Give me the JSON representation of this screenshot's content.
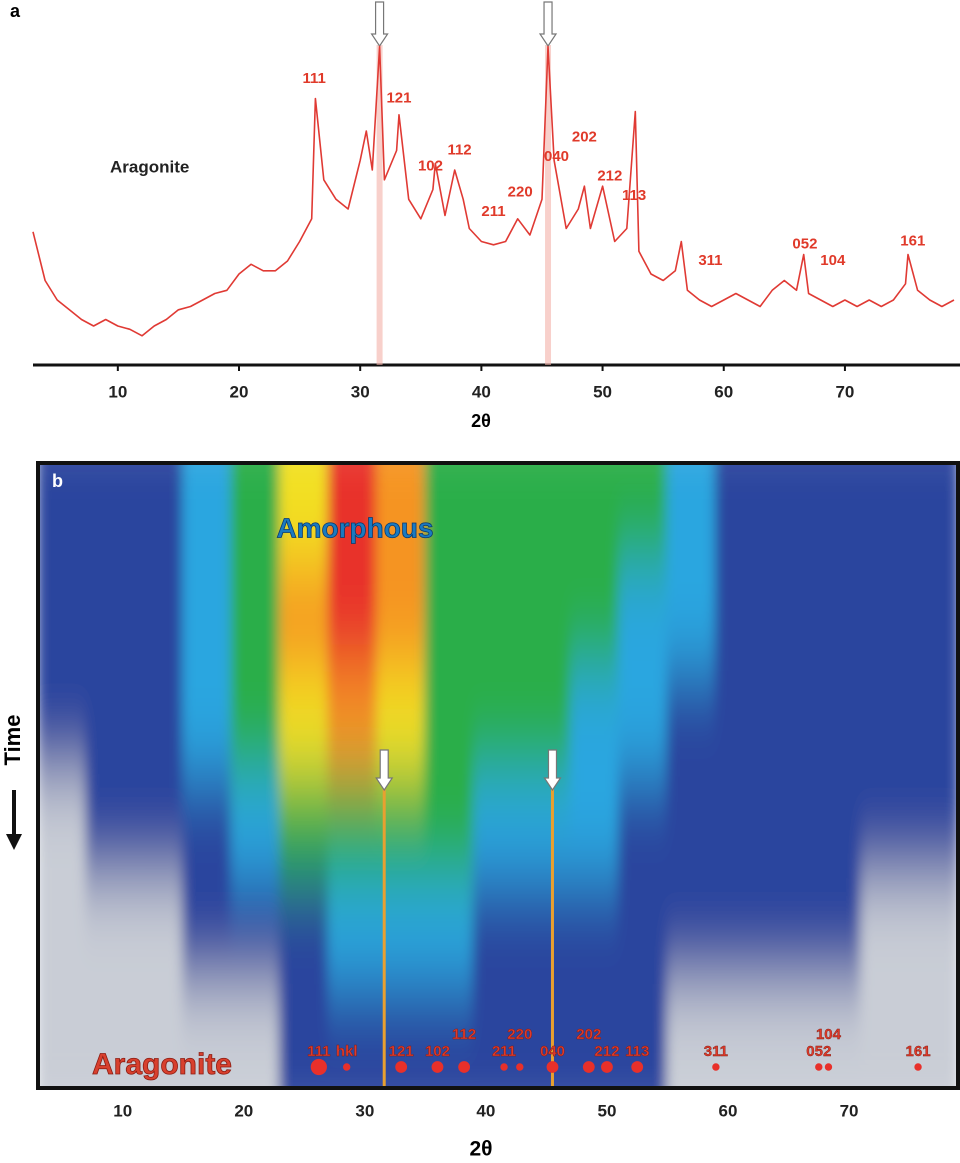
{
  "chart_data": [
    {
      "type": "line",
      "panel_label": "a",
      "sample_label": "Aragonite",
      "x_label": "2θ",
      "color": "#e03a34",
      "xlim": [
        3,
        79
      ],
      "xticks": [
        10,
        20,
        30,
        40,
        50,
        60,
        70
      ],
      "ylim": [
        0,
        100
      ],
      "arrows": [
        31.6,
        45.5
      ],
      "x": [
        3,
        4,
        5,
        6,
        7,
        8,
        9,
        10,
        11,
        12,
        13,
        14,
        15,
        16,
        17,
        18,
        19,
        20,
        21,
        22,
        23,
        24,
        25,
        26,
        26.3,
        27,
        28,
        29,
        30,
        30.5,
        31,
        31.6,
        32,
        33,
        33.2,
        34,
        35,
        36,
        36.2,
        37,
        37.8,
        38.5,
        39,
        40,
        41,
        42,
        43,
        44,
        45,
        45.5,
        46,
        47,
        48,
        48.5,
        49,
        50,
        51,
        52,
        52.7,
        53,
        54,
        55,
        56,
        56.5,
        57,
        58,
        59,
        60,
        61,
        62,
        63,
        64,
        65,
        66,
        66.6,
        67,
        68,
        69,
        70,
        71,
        72,
        73,
        74,
        75,
        75.2,
        76,
        77,
        78,
        79
      ],
      "values": [
        41,
        26,
        20,
        17,
        14,
        12,
        14,
        12,
        11,
        9,
        12,
        14,
        17,
        18,
        20,
        22,
        23,
        28,
        31,
        29,
        29,
        32,
        38,
        45,
        82,
        57,
        51,
        48,
        63,
        72,
        60,
        98,
        57,
        66,
        77,
        51,
        45,
        54,
        62,
        46,
        60,
        51,
        42,
        38,
        37,
        38,
        45,
        40,
        51,
        98,
        63,
        42,
        48,
        55,
        42,
        55,
        38,
        42,
        78,
        35,
        28,
        26,
        29,
        38,
        23,
        20,
        18,
        20,
        22,
        20,
        18,
        23,
        26,
        23,
        34,
        22,
        20,
        18,
        20,
        18,
        20,
        18,
        20,
        25,
        34,
        23,
        20,
        18,
        20
      ],
      "annotations": [
        {
          "text": "111",
          "x": 26.2,
          "y": 88
        },
        {
          "text": "121",
          "x": 33.2,
          "y": 82
        },
        {
          "text": "102",
          "x": 35.8,
          "y": 61
        },
        {
          "text": "112",
          "x": 38.2,
          "y": 66
        },
        {
          "text": "211",
          "x": 41,
          "y": 47
        },
        {
          "text": "220",
          "x": 43.2,
          "y": 53
        },
        {
          "text": "040",
          "x": 46.2,
          "y": 64
        },
        {
          "text": "202",
          "x": 48.5,
          "y": 70
        },
        {
          "text": "212",
          "x": 50.6,
          "y": 58
        },
        {
          "text": "113",
          "x": 52.6,
          "y": 52
        },
        {
          "text": "311",
          "x": 58.9,
          "y": 32
        },
        {
          "text": "052",
          "x": 66.7,
          "y": 37
        },
        {
          "text": "104",
          "x": 69,
          "y": 32
        },
        {
          "text": "161",
          "x": 75.6,
          "y": 38
        }
      ]
    },
    {
      "type": "heatmap",
      "panel_label": "b",
      "phase_top": "Amorphous",
      "phase_bottom": "Aragonite",
      "y_label": "Time",
      "x_label": "2θ",
      "xlim": [
        3,
        79
      ],
      "xticks": [
        10,
        20,
        30,
        40,
        50,
        60,
        70
      ],
      "bins": [
        3,
        7,
        11,
        15,
        19,
        23,
        27,
        31,
        35,
        39,
        43,
        47,
        51,
        55,
        59,
        63,
        67,
        71,
        75,
        79
      ],
      "levels": [
        "#c9cdd6",
        "#2a449e",
        "#2aa6e0",
        "#2cae4a",
        "#f2e024",
        "#f59422",
        "#e8322a"
      ],
      "rows": [
        [
          1,
          1,
          1,
          2,
          3,
          4,
          6,
          5,
          3,
          3,
          3,
          3,
          3,
          2,
          1,
          1,
          1,
          1,
          1
        ],
        [
          1,
          1,
          1,
          2,
          3,
          5,
          6,
          5,
          3,
          3,
          3,
          3,
          2,
          2,
          1,
          1,
          1,
          1,
          1
        ],
        [
          1,
          1,
          1,
          2,
          3,
          4,
          5,
          4,
          3,
          3,
          3,
          2,
          2,
          1,
          1,
          1,
          1,
          1,
          1
        ],
        [
          0,
          1,
          1,
          1,
          2,
          3,
          3,
          3,
          3,
          2,
          2,
          2,
          1,
          1,
          1,
          1,
          1,
          1,
          1
        ],
        [
          0,
          0,
          0,
          1,
          1,
          1,
          2,
          2,
          2,
          1,
          1,
          1,
          1,
          1,
          1,
          1,
          1,
          0,
          0
        ],
        [
          0,
          0,
          0,
          0,
          0,
          1,
          1,
          1,
          1,
          1,
          1,
          1,
          1,
          0,
          0,
          0,
          0,
          0,
          0
        ]
      ],
      "arrows": [
        31.6,
        45.5
      ],
      "peaks": [
        {
          "label": "111",
          "x": 26.2,
          "intensity": 3
        },
        {
          "label": "hkl",
          "x": 28.5,
          "intensity": 1
        },
        {
          "label": "121",
          "x": 33,
          "intensity": 2
        },
        {
          "label": "102",
          "x": 36,
          "intensity": 2
        },
        {
          "label": "112",
          "x": 38.2,
          "intensity": 2
        },
        {
          "label": "211",
          "x": 41.5,
          "intensity": 1
        },
        {
          "label": "220",
          "x": 42.8,
          "intensity": 1
        },
        {
          "label": "040",
          "x": 45.5,
          "intensity": 2
        },
        {
          "label": "202",
          "x": 48.5,
          "intensity": 2
        },
        {
          "label": "212",
          "x": 50,
          "intensity": 2
        },
        {
          "label": "113",
          "x": 52.5,
          "intensity": 2
        },
        {
          "label": "311",
          "x": 59,
          "intensity": 1
        },
        {
          "label": "052",
          "x": 67.5,
          "intensity": 1
        },
        {
          "label": "104",
          "x": 68.3,
          "intensity": 1
        },
        {
          "label": "161",
          "x": 75.7,
          "intensity": 1
        }
      ]
    }
  ]
}
